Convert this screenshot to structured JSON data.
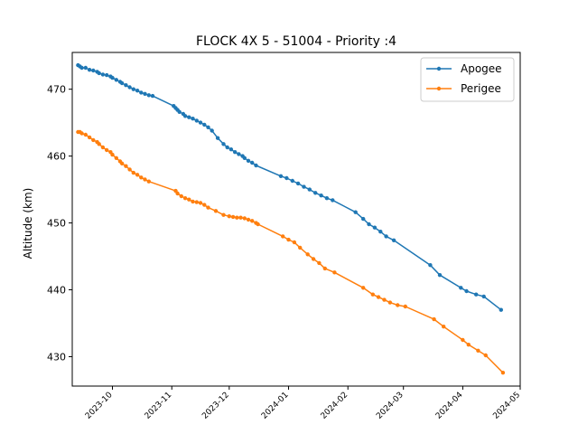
{
  "chart_data": {
    "type": "line",
    "title": "FLOCK 4X 5 - 51004 - Priority :4",
    "xlabel": "",
    "ylabel": "Altitude (km)",
    "ylim": [
      425.6,
      475.5
    ],
    "xlim": [
      "2023-09-10",
      "2024-05-01"
    ],
    "grid": false,
    "legend_position": "top-right",
    "y_ticks": [
      430,
      440,
      450,
      460,
      470
    ],
    "x_ticks": [
      "2023-10",
      "2023-11",
      "2023-12",
      "2024-01",
      "2024-02",
      "2024-03",
      "2024-04",
      "2024-05"
    ],
    "series": [
      {
        "name": "Apogee",
        "color": "#1f77b4",
        "points": [
          [
            "2023-09-13",
            473.6
          ],
          [
            "2023-09-14",
            473.4
          ],
          [
            "2023-09-15",
            473.2
          ],
          [
            "2023-09-17",
            473.2
          ],
          [
            "2023-09-19",
            472.9
          ],
          [
            "2023-09-21",
            472.8
          ],
          [
            "2023-09-23",
            472.6
          ],
          [
            "2023-09-24",
            472.4
          ],
          [
            "2023-09-26",
            472.2
          ],
          [
            "2023-09-28",
            472.1
          ],
          [
            "2023-09-30",
            471.9
          ],
          [
            "2023-10-01",
            471.7
          ],
          [
            "2023-10-03",
            471.4
          ],
          [
            "2023-10-05",
            471.1
          ],
          [
            "2023-10-06",
            470.9
          ],
          [
            "2023-10-08",
            470.6
          ],
          [
            "2023-10-10",
            470.3
          ],
          [
            "2023-10-12",
            470.0
          ],
          [
            "2023-10-14",
            469.8
          ],
          [
            "2023-10-16",
            469.5
          ],
          [
            "2023-10-18",
            469.3
          ],
          [
            "2023-10-20",
            469.1
          ],
          [
            "2023-10-22",
            469.0
          ],
          [
            "2023-11-02",
            467.5
          ],
          [
            "2023-11-03",
            467.2
          ],
          [
            "2023-11-04",
            466.9
          ],
          [
            "2023-11-05",
            466.6
          ],
          [
            "2023-11-07",
            466.3
          ],
          [
            "2023-11-08",
            466.0
          ],
          [
            "2023-11-10",
            465.8
          ],
          [
            "2023-11-12",
            465.6
          ],
          [
            "2023-11-14",
            465.3
          ],
          [
            "2023-11-16",
            465.0
          ],
          [
            "2023-11-18",
            464.7
          ],
          [
            "2023-11-20",
            464.3
          ],
          [
            "2023-11-22",
            463.8
          ],
          [
            "2023-11-25",
            462.7
          ],
          [
            "2023-11-28",
            461.8
          ],
          [
            "2023-11-30",
            461.3
          ],
          [
            "2023-12-02",
            461.0
          ],
          [
            "2023-12-04",
            460.6
          ],
          [
            "2023-12-06",
            460.3
          ],
          [
            "2023-12-08",
            460.0
          ],
          [
            "2023-12-09",
            459.7
          ],
          [
            "2023-12-11",
            459.3
          ],
          [
            "2023-12-13",
            459.0
          ],
          [
            "2023-12-15",
            458.6
          ],
          [
            "2023-12-28",
            457.0
          ],
          [
            "2023-12-31",
            456.7
          ],
          [
            "2024-01-03",
            456.3
          ],
          [
            "2024-01-06",
            455.9
          ],
          [
            "2024-01-09",
            455.4
          ],
          [
            "2024-01-12",
            455.0
          ],
          [
            "2024-01-15",
            454.5
          ],
          [
            "2024-01-18",
            454.1
          ],
          [
            "2024-01-21",
            453.7
          ],
          [
            "2024-01-24",
            453.4
          ],
          [
            "2024-02-05",
            451.6
          ],
          [
            "2024-02-09",
            450.6
          ],
          [
            "2024-02-12",
            449.8
          ],
          [
            "2024-02-15",
            449.3
          ],
          [
            "2024-02-18",
            448.7
          ],
          [
            "2024-02-21",
            448.0
          ],
          [
            "2024-02-25",
            447.4
          ],
          [
            "2024-03-15",
            443.7
          ],
          [
            "2024-03-20",
            442.2
          ],
          [
            "2024-03-31",
            440.3
          ],
          [
            "2024-04-03",
            439.8
          ],
          [
            "2024-04-08",
            439.3
          ],
          [
            "2024-04-12",
            439.0
          ],
          [
            "2024-04-21",
            437.0
          ]
        ]
      },
      {
        "name": "Perigee",
        "color": "#ff7f0e",
        "points": [
          [
            "2023-09-13",
            463.6
          ],
          [
            "2023-09-14",
            463.6
          ],
          [
            "2023-09-15",
            463.4
          ],
          [
            "2023-09-17",
            463.2
          ],
          [
            "2023-09-19",
            462.8
          ],
          [
            "2023-09-21",
            462.4
          ],
          [
            "2023-09-23",
            462.1
          ],
          [
            "2023-09-24",
            461.8
          ],
          [
            "2023-09-26",
            461.3
          ],
          [
            "2023-09-28",
            460.9
          ],
          [
            "2023-09-30",
            460.6
          ],
          [
            "2023-10-01",
            460.2
          ],
          [
            "2023-10-03",
            459.7
          ],
          [
            "2023-10-05",
            459.2
          ],
          [
            "2023-10-06",
            458.9
          ],
          [
            "2023-10-08",
            458.5
          ],
          [
            "2023-10-10",
            458.0
          ],
          [
            "2023-10-12",
            457.5
          ],
          [
            "2023-10-14",
            457.2
          ],
          [
            "2023-10-16",
            456.8
          ],
          [
            "2023-10-18",
            456.5
          ],
          [
            "2023-10-20",
            456.2
          ],
          [
            "2023-11-03",
            454.8
          ],
          [
            "2023-11-04",
            454.4
          ],
          [
            "2023-11-06",
            454.0
          ],
          [
            "2023-11-08",
            453.7
          ],
          [
            "2023-11-10",
            453.5
          ],
          [
            "2023-11-12",
            453.2
          ],
          [
            "2023-11-14",
            453.1
          ],
          [
            "2023-11-16",
            453.0
          ],
          [
            "2023-11-18",
            452.7
          ],
          [
            "2023-11-20",
            452.3
          ],
          [
            "2023-11-24",
            451.8
          ],
          [
            "2023-11-28",
            451.2
          ],
          [
            "2023-12-01",
            451.0
          ],
          [
            "2023-12-03",
            450.9
          ],
          [
            "2023-12-05",
            450.8
          ],
          [
            "2023-12-07",
            450.8
          ],
          [
            "2023-12-09",
            450.7
          ],
          [
            "2023-12-11",
            450.5
          ],
          [
            "2023-12-13",
            450.3
          ],
          [
            "2023-12-15",
            450.0
          ],
          [
            "2023-12-16",
            449.8
          ],
          [
            "2023-12-29",
            448.0
          ],
          [
            "2024-01-01",
            447.5
          ],
          [
            "2024-01-04",
            447.1
          ],
          [
            "2024-01-07",
            446.3
          ],
          [
            "2024-01-11",
            445.3
          ],
          [
            "2024-01-14",
            444.6
          ],
          [
            "2024-01-17",
            444.0
          ],
          [
            "2024-01-20",
            443.2
          ],
          [
            "2024-01-25",
            442.6
          ],
          [
            "2024-02-09",
            440.3
          ],
          [
            "2024-02-14",
            439.3
          ],
          [
            "2024-02-17",
            438.9
          ],
          [
            "2024-02-20",
            438.5
          ],
          [
            "2024-02-23",
            438.1
          ],
          [
            "2024-02-27",
            437.7
          ],
          [
            "2024-03-02",
            437.5
          ],
          [
            "2024-03-17",
            435.6
          ],
          [
            "2024-03-22",
            434.5
          ],
          [
            "2024-04-01",
            432.5
          ],
          [
            "2024-04-04",
            431.8
          ],
          [
            "2024-04-09",
            430.9
          ],
          [
            "2024-04-13",
            430.2
          ],
          [
            "2024-04-22",
            427.6
          ]
        ]
      }
    ]
  }
}
